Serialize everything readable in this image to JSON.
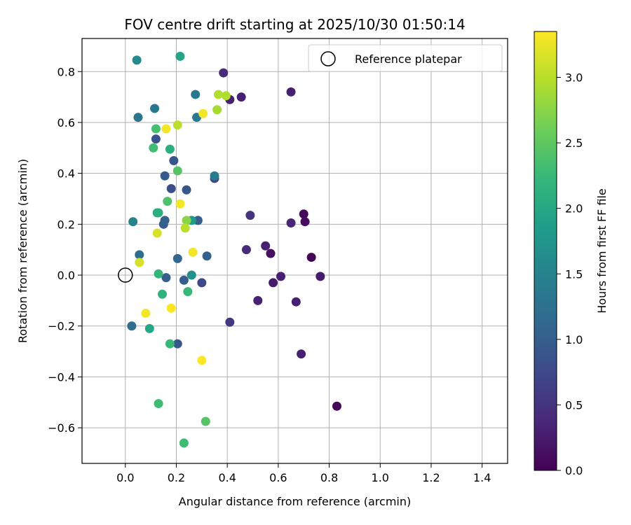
{
  "chart_data": {
    "type": "scatter",
    "title": "FOV centre drift starting at 2025/10/30 01:50:14",
    "xlabel": "Angular distance from reference (arcmin)",
    "ylabel": "Rotation from reference (arcmin)",
    "xlim": [
      -0.17,
      1.5
    ],
    "ylim": [
      -0.74,
      0.93
    ],
    "xticks": [
      0.0,
      0.2,
      0.4,
      0.6,
      0.8,
      1.0,
      1.2,
      1.4
    ],
    "xtick_labels": [
      "0.0",
      "0.2",
      "0.4",
      "0.6",
      "0.8",
      "1.0",
      "1.2",
      "1.4"
    ],
    "yticks": [
      -0.6,
      -0.4,
      -0.2,
      0.0,
      0.2,
      0.4,
      0.6,
      0.8
    ],
    "ytick_labels": [
      "−0.6",
      "−0.4",
      "−0.2",
      "0.0",
      "0.2",
      "0.4",
      "0.6",
      "0.8"
    ],
    "grid": true,
    "legend": {
      "entries": [
        "Reference platepar"
      ],
      "placement": "top-right"
    },
    "reference_point": {
      "x": 0.0,
      "y": 0.0,
      "label": "Reference platepar"
    },
    "colorbar": {
      "label": "Hours from first FF file",
      "range": [
        0.0,
        3.35
      ],
      "ticks": [
        0.0,
        0.5,
        1.0,
        1.5,
        2.0,
        2.5,
        3.0
      ],
      "tick_labels": [
        "0.0",
        "0.5",
        "1.0",
        "1.5",
        "2.0",
        "2.5",
        "3.0"
      ],
      "colormap": [
        "#440154",
        "#482878",
        "#3e4989",
        "#31688e",
        "#26828e",
        "#1f9e89",
        "#35b779",
        "#6ece58",
        "#b5de2b",
        "#fde725"
      ]
    },
    "points": [
      {
        "x": 0.83,
        "y": -0.515,
        "c": 0.05
      },
      {
        "x": 0.73,
        "y": 0.07,
        "c": 0.05
      },
      {
        "x": 0.7,
        "y": 0.24,
        "c": 0.08
      },
      {
        "x": 0.705,
        "y": 0.21,
        "c": 0.1
      },
      {
        "x": 0.57,
        "y": 0.085,
        "c": 0.12
      },
      {
        "x": 0.765,
        "y": -0.005,
        "c": 0.25
      },
      {
        "x": 0.58,
        "y": -0.03,
        "c": 0.25
      },
      {
        "x": 0.61,
        "y": -0.005,
        "c": 0.3
      },
      {
        "x": 0.55,
        "y": 0.115,
        "c": 0.3
      },
      {
        "x": 0.69,
        "y": -0.31,
        "c": 0.3
      },
      {
        "x": 0.67,
        "y": -0.105,
        "c": 0.3
      },
      {
        "x": 0.52,
        "y": -0.1,
        "c": 0.32
      },
      {
        "x": 0.65,
        "y": 0.72,
        "c": 0.3
      },
      {
        "x": 0.65,
        "y": 0.205,
        "c": 0.35
      },
      {
        "x": 0.475,
        "y": 0.1,
        "c": 0.4
      },
      {
        "x": 0.41,
        "y": 0.69,
        "c": 0.3
      },
      {
        "x": 0.455,
        "y": 0.7,
        "c": 0.3
      },
      {
        "x": 0.385,
        "y": 0.795,
        "c": 0.4
      },
      {
        "x": 0.49,
        "y": 0.235,
        "c": 0.5
      },
      {
        "x": 0.41,
        "y": -0.185,
        "c": 0.55
      },
      {
        "x": 0.35,
        "y": 0.38,
        "c": 0.75
      },
      {
        "x": 0.3,
        "y": -0.03,
        "c": 0.75
      },
      {
        "x": 0.205,
        "y": -0.27,
        "c": 0.9
      },
      {
        "x": 0.285,
        "y": 0.215,
        "c": 1.0
      },
      {
        "x": 0.32,
        "y": 0.075,
        "c": 1.05
      },
      {
        "x": 0.23,
        "y": -0.02,
        "c": 1.0
      },
      {
        "x": 0.24,
        "y": 0.335,
        "c": 0.9
      },
      {
        "x": 0.16,
        "y": -0.01,
        "c": 1.0
      },
      {
        "x": 0.18,
        "y": 0.34,
        "c": 0.8
      },
      {
        "x": 0.19,
        "y": 0.45,
        "c": 0.9
      },
      {
        "x": 0.155,
        "y": 0.39,
        "c": 0.95
      },
      {
        "x": 0.12,
        "y": 0.535,
        "c": 0.85
      },
      {
        "x": 0.15,
        "y": 0.2,
        "c": 1.0
      },
      {
        "x": 0.155,
        "y": 0.215,
        "c": 1.05
      },
      {
        "x": 0.205,
        "y": 0.065,
        "c": 1.1
      },
      {
        "x": 0.055,
        "y": 0.08,
        "c": 1.2
      },
      {
        "x": 0.025,
        "y": -0.2,
        "c": 1.2
      },
      {
        "x": 0.05,
        "y": 0.62,
        "c": 1.3
      },
      {
        "x": 0.115,
        "y": 0.655,
        "c": 1.35
      },
      {
        "x": 0.275,
        "y": 0.71,
        "c": 1.35
      },
      {
        "x": 0.28,
        "y": 0.62,
        "c": 1.35
      },
      {
        "x": 0.35,
        "y": 0.39,
        "c": 1.4
      },
      {
        "x": 0.03,
        "y": 0.21,
        "c": 1.5
      },
      {
        "x": 0.045,
        "y": 0.845,
        "c": 1.6
      },
      {
        "x": 0.26,
        "y": 0.0,
        "c": 1.7
      },
      {
        "x": 0.26,
        "y": 0.215,
        "c": 1.85
      },
      {
        "x": 0.215,
        "y": 0.86,
        "c": 1.95
      },
      {
        "x": 0.095,
        "y": -0.21,
        "c": 2.0
      },
      {
        "x": 0.125,
        "y": 0.245,
        "c": 2.05
      },
      {
        "x": 0.13,
        "y": 0.245,
        "c": 2.1
      },
      {
        "x": 0.175,
        "y": 0.495,
        "c": 2.1
      },
      {
        "x": 0.145,
        "y": -0.075,
        "c": 2.15
      },
      {
        "x": 0.13,
        "y": 0.005,
        "c": 2.2
      },
      {
        "x": 0.245,
        "y": -0.065,
        "c": 2.25
      },
      {
        "x": 0.175,
        "y": -0.27,
        "c": 2.25
      },
      {
        "x": 0.11,
        "y": 0.5,
        "c": 2.3
      },
      {
        "x": 0.12,
        "y": 0.575,
        "c": 2.35
      },
      {
        "x": 0.165,
        "y": 0.29,
        "c": 2.4
      },
      {
        "x": 0.205,
        "y": 0.41,
        "c": 2.45
      },
      {
        "x": 0.13,
        "y": -0.505,
        "c": 2.3
      },
      {
        "x": 0.23,
        "y": -0.66,
        "c": 2.3
      },
      {
        "x": 0.315,
        "y": -0.575,
        "c": 2.45
      },
      {
        "x": 0.24,
        "y": 0.215,
        "c": 2.75
      },
      {
        "x": 0.36,
        "y": 0.65,
        "c": 2.9
      },
      {
        "x": 0.365,
        "y": 0.71,
        "c": 2.95
      },
      {
        "x": 0.395,
        "y": 0.705,
        "c": 2.95
      },
      {
        "x": 0.205,
        "y": 0.59,
        "c": 3.0
      },
      {
        "x": 0.235,
        "y": 0.185,
        "c": 3.0
      },
      {
        "x": 0.125,
        "y": 0.165,
        "c": 3.15
      },
      {
        "x": 0.055,
        "y": 0.05,
        "c": 3.15
      },
      {
        "x": 0.305,
        "y": 0.635,
        "c": 3.3
      },
      {
        "x": 0.16,
        "y": 0.575,
        "c": 3.3
      },
      {
        "x": 0.265,
        "y": 0.09,
        "c": 3.3
      },
      {
        "x": 0.215,
        "y": 0.28,
        "c": 3.3
      },
      {
        "x": 0.08,
        "y": -0.15,
        "c": 3.3
      },
      {
        "x": 0.18,
        "y": -0.13,
        "c": 3.35
      },
      {
        "x": 0.3,
        "y": -0.335,
        "c": 3.35
      }
    ]
  }
}
